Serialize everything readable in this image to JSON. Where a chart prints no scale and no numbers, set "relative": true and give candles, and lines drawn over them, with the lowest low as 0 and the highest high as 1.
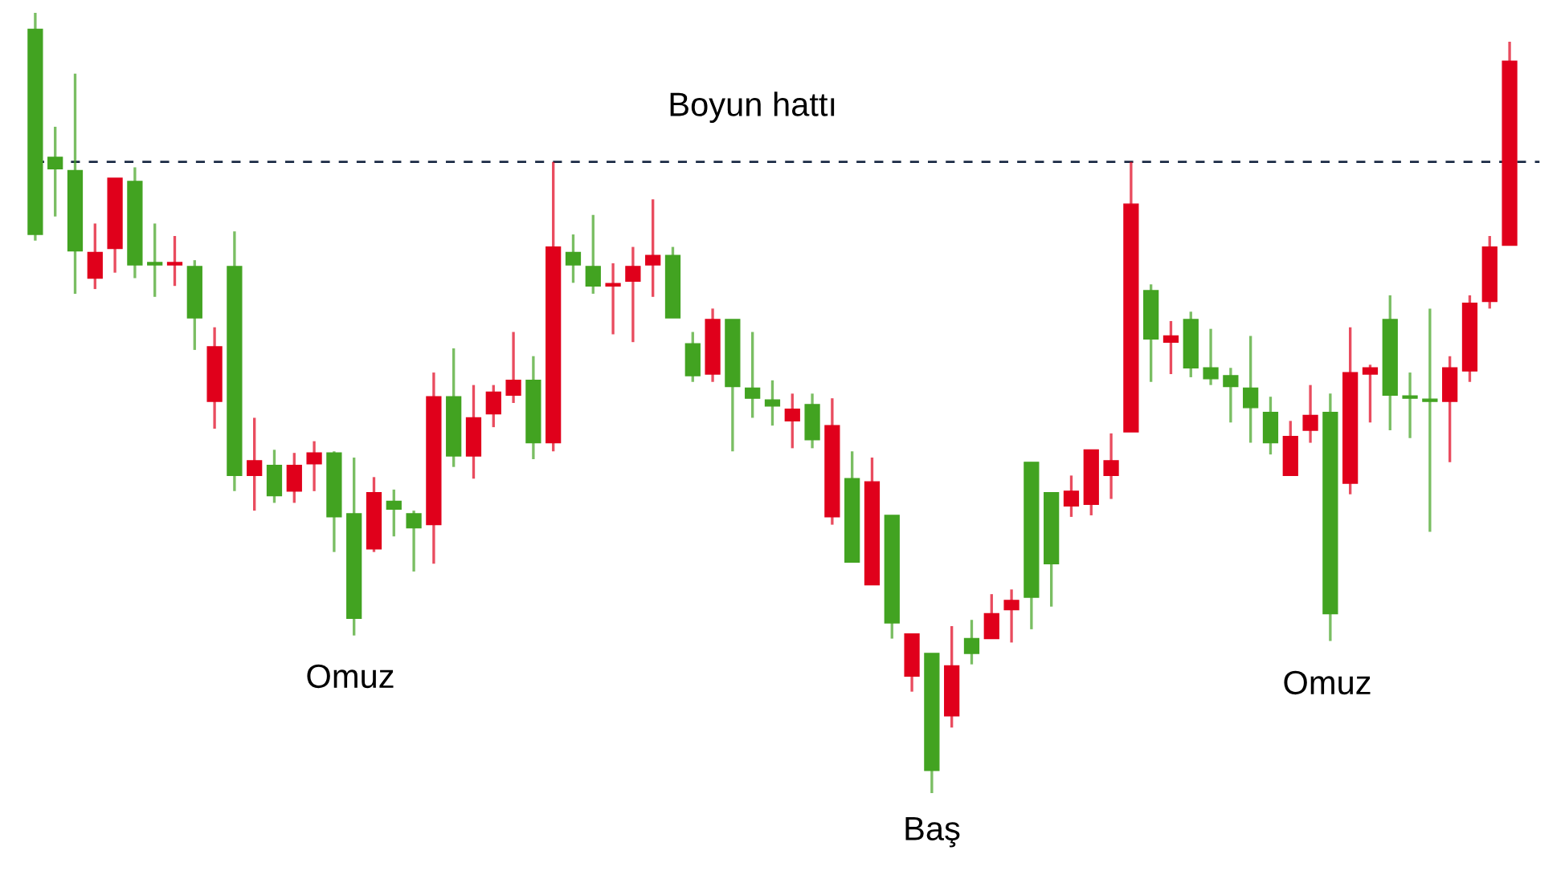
{
  "chart_data": {
    "type": "candlestick",
    "relative": true,
    "categories": [
      null,
      null,
      null,
      null,
      null,
      null,
      null,
      null,
      null,
      null,
      null,
      null,
      null,
      null,
      null,
      null,
      null,
      null,
      null,
      null,
      null,
      null,
      null,
      null,
      null,
      null,
      null,
      null,
      null,
      null,
      null,
      null,
      null,
      null,
      null,
      null,
      null,
      null,
      null,
      null,
      null,
      null,
      null,
      null,
      null,
      null,
      null,
      null,
      null,
      null,
      null,
      null,
      null,
      null,
      null,
      null,
      null,
      null,
      null,
      null,
      null,
      null,
      null,
      null,
      null,
      null,
      null,
      null,
      null,
      null,
      null,
      null,
      null,
      null,
      null
    ],
    "ohlc": [
      [
        0.979,
        1,
        0.708,
        0.716
      ],
      [
        0.815,
        0.854,
        0.739,
        0.8
      ],
      [
        0.798,
        0.922,
        0.64,
        0.695
      ],
      [
        0.66,
        0.73,
        0.646,
        0.693
      ],
      [
        0.698,
        0.788,
        0.667,
        0.788
      ],
      [
        0.784,
        0.802,
        0.66,
        0.677
      ],
      [
        0.679,
        0.73,
        0.636,
        0.677
      ],
      [
        0.677,
        0.714,
        0.65,
        0.679
      ],
      [
        0.675,
        0.683,
        0.568,
        0.609
      ],
      [
        0.502,
        0.597,
        0.467,
        0.572
      ],
      [
        0.675,
        0.72,
        0.387,
        0.407
      ],
      [
        0.407,
        0.481,
        0.362,
        0.426
      ],
      [
        0.42,
        0.44,
        0.372,
        0.381
      ],
      [
        0.387,
        0.436,
        0.372,
        0.42
      ],
      [
        0.422,
        0.451,
        0.387,
        0.436
      ],
      [
        0.436,
        0.438,
        0.309,
        0.354
      ],
      [
        0.358,
        0.43,
        0.202,
        0.224
      ],
      [
        0.313,
        0.405,
        0.309,
        0.385
      ],
      [
        0.374,
        0.389,
        0.329,
        0.364
      ],
      [
        0.358,
        0.362,
        0.284,
        0.34
      ],
      [
        0.344,
        0.539,
        0.294,
        0.508
      ],
      [
        0.508,
        0.57,
        0.418,
        0.432
      ],
      [
        0.432,
        0.523,
        0.403,
        0.481
      ],
      [
        0.486,
        0.523,
        0.469,
        0.514
      ],
      [
        0.51,
        0.591,
        0.5,
        0.529
      ],
      [
        0.529,
        0.56,
        0.428,
        0.449
      ],
      [
        0.449,
        0.809,
        0.438,
        0.7
      ],
      [
        0.693,
        0.716,
        0.654,
        0.677
      ],
      [
        0.675,
        0.741,
        0.64,
        0.65
      ],
      [
        0.65,
        0.679,
        0.588,
        0.652
      ],
      [
        0.656,
        0.7,
        0.578,
        0.675
      ],
      [
        0.677,
        0.761,
        0.636,
        0.689
      ],
      [
        0.689,
        0.7,
        0.609,
        0.609
      ],
      [
        0.576,
        0.591,
        0.527,
        0.535
      ],
      [
        0.537,
        0.621,
        0.527,
        0.607
      ],
      [
        0.607,
        0.607,
        0.438,
        0.521
      ],
      [
        0.519,
        0.591,
        0.481,
        0.506
      ],
      [
        0.504,
        0.529,
        0.471,
        0.496
      ],
      [
        0.477,
        0.512,
        0.442,
        0.492
      ],
      [
        0.498,
        0.512,
        0.442,
        0.453
      ],
      [
        0.354,
        0.506,
        0.344,
        0.471
      ],
      [
        0.403,
        0.438,
        0.296,
        0.296
      ],
      [
        0.267,
        0.43,
        0.267,
        0.399
      ],
      [
        0.356,
        0.356,
        0.198,
        0.218
      ],
      [
        0.15,
        0.204,
        0.13,
        0.204
      ],
      [
        0.179,
        0.179,
        0,
        0.029
      ],
      [
        0.099,
        0.214,
        0.084,
        0.163
      ],
      [
        0.198,
        0.222,
        0.165,
        0.179
      ],
      [
        0.198,
        0.255,
        0.198,
        0.23
      ],
      [
        0.235,
        0.261,
        0.193,
        0.247
      ],
      [
        0.424,
        0.424,
        0.21,
        0.251
      ],
      [
        0.385,
        0.385,
        0.239,
        0.294
      ],
      [
        0.368,
        0.407,
        0.354,
        0.387
      ],
      [
        0.37,
        0.44,
        0.356,
        0.44
      ],
      [
        0.407,
        0.461,
        0.377,
        0.426
      ],
      [
        0.463,
        0.809,
        0.463,
        0.755
      ],
      [
        0.644,
        0.652,
        0.527,
        0.582
      ],
      [
        0.578,
        0.605,
        0.537,
        0.586
      ],
      [
        0.607,
        0.617,
        0.533,
        0.545
      ],
      [
        0.545,
        0.595,
        0.523,
        0.531
      ],
      [
        0.535,
        0.545,
        0.475,
        0.521
      ],
      [
        0.519,
        0.586,
        0.449,
        0.494
      ],
      [
        0.488,
        0.508,
        0.434,
        0.449
      ],
      [
        0.407,
        0.477,
        0.407,
        0.457
      ],
      [
        0.465,
        0.523,
        0.449,
        0.484
      ],
      [
        0.488,
        0.512,
        0.195,
        0.23
      ],
      [
        0.397,
        0.597,
        0.383,
        0.539
      ],
      [
        0.537,
        0.549,
        0.475,
        0.545
      ],
      [
        0.607,
        0.638,
        0.465,
        0.51
      ],
      [
        0.508,
        0.539,
        0.455,
        0.506
      ],
      [
        0.504,
        0.621,
        0.335,
        0.502
      ],
      [
        0.502,
        0.56,
        0.424,
        0.545
      ],
      [
        0.541,
        0.638,
        0.527,
        0.628
      ],
      [
        0.63,
        0.714,
        0.621,
        0.7
      ],
      [
        0.702,
        0.963,
        0.702,
        0.938
      ]
    ],
    "colors": [
      "#42a321",
      "#42a321",
      "#42a321",
      "#e0001b",
      "#e0001b",
      "#42a321",
      "#42a321",
      "#e0001b",
      "#42a321",
      "#e0001b",
      "#42a321",
      "#e0001b",
      "#42a321",
      "#e0001b",
      "#e0001b",
      "#42a321",
      "#42a321",
      "#e0001b",
      "#42a321",
      "#42a321",
      "#e0001b",
      "#42a321",
      "#e0001b",
      "#e0001b",
      "#e0001b",
      "#42a321",
      "#e0001b",
      "#42a321",
      "#42a321",
      "#e0001b",
      "#e0001b",
      "#e0001b",
      "#42a321",
      "#42a321",
      "#e0001b",
      "#42a321",
      "#42a321",
      "#42a321",
      "#e0001b",
      "#42a321",
      "#e0001b",
      "#42a321",
      "#e0001b",
      "#42a321",
      "#e0001b",
      "#42a321",
      "#e0001b",
      "#42a321",
      "#e0001b",
      "#e0001b",
      "#42a321",
      "#42a321",
      "#e0001b",
      "#e0001b",
      "#e0001b",
      "#e0001b",
      "#42a321",
      "#e0001b",
      "#42a321",
      "#42a321",
      "#42a321",
      "#42a321",
      "#42a321",
      "#e0001b",
      "#e0001b",
      "#42a321",
      "#e0001b",
      "#e0001b",
      "#42a321",
      "#42a321",
      "#42a321",
      "#e0001b",
      "#e0001b",
      "#e0001b",
      "#e0001b"
    ],
    "ref_lines": [
      {
        "axis": "y",
        "value": 0.809,
        "label": "Boyun hattı",
        "color": "#1a2a44",
        "line_style": "dashed"
      }
    ],
    "annotations": [
      "Omuz",
      "Baş",
      "Omuz"
    ],
    "grid": false,
    "legend": false
  }
}
